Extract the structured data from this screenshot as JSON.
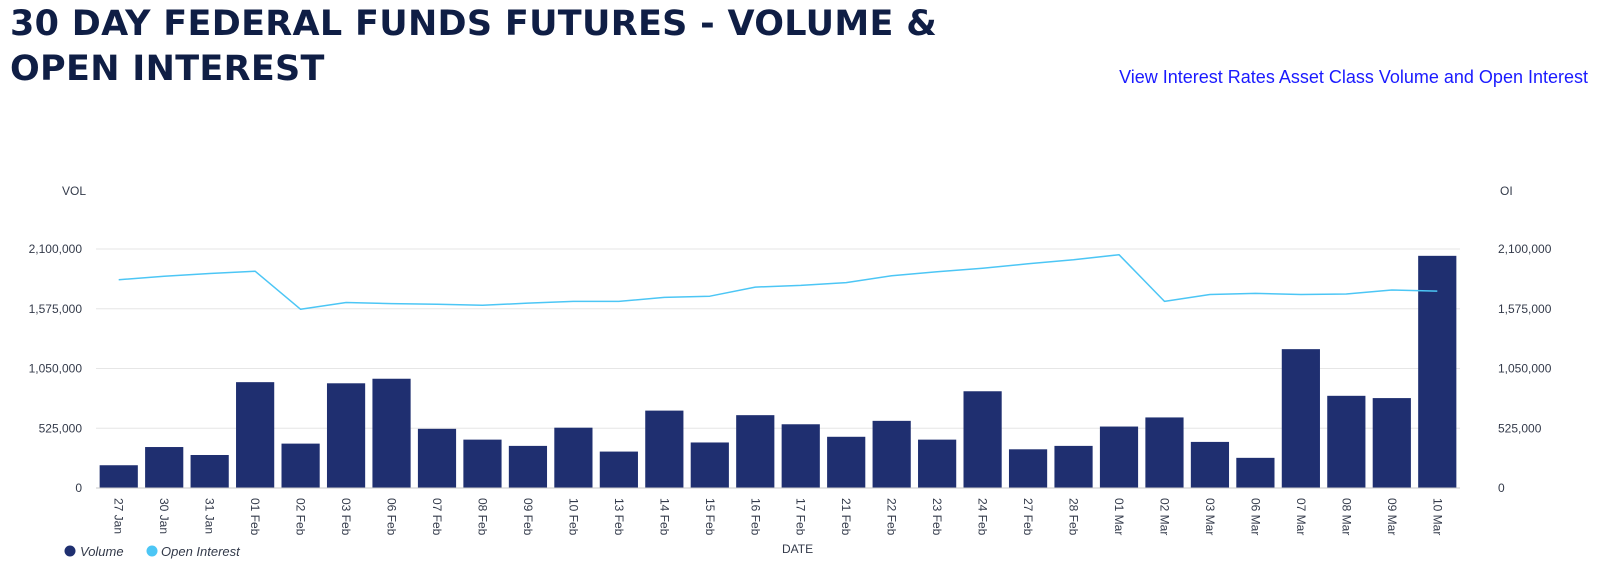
{
  "header": {
    "title": "30 DAY FEDERAL FUNDS FUTURES - VOLUME & OPEN INTEREST",
    "asset_link": "View Interest Rates Asset Class Volume and Open Interest"
  },
  "colors": {
    "volume": "#1f2f70",
    "open_interest": "#4cc6f5",
    "gridline": "#e6e6e6"
  },
  "chart_data": {
    "type": "bar",
    "title": "30 DAY FEDERAL FUNDS FUTURES - VOLUME & OPEN INTEREST",
    "xlabel": "DATE",
    "ylabel": "VOL",
    "y2label": "OI",
    "ylim": [
      0,
      2100000
    ],
    "y2lim": [
      0,
      2100000
    ],
    "yticks": [
      "0",
      "525,000",
      "1,050,000",
      "1,575,000",
      "2,100,000"
    ],
    "y2ticks": [
      "0",
      "525,000",
      "1,050,000",
      "1,575,000",
      "2,100,000"
    ],
    "grid": true,
    "legend": "bottom-left",
    "categories": [
      "27 Jan",
      "30 Jan",
      "31 Jan",
      "01 Feb",
      "02 Feb",
      "03 Feb",
      "06 Feb",
      "07 Feb",
      "08 Feb",
      "09 Feb",
      "10 Feb",
      "13 Feb",
      "14 Feb",
      "15 Feb",
      "16 Feb",
      "17 Feb",
      "21 Feb",
      "22 Feb",
      "23 Feb",
      "24 Feb",
      "27 Feb",
      "28 Feb",
      "01 Mar",
      "02 Mar",
      "03 Mar",
      "06 Mar",
      "07 Mar",
      "08 Mar",
      "09 Mar",
      "10 Mar"
    ],
    "series": [
      {
        "name": "Volume",
        "type": "bar",
        "axis": "left",
        "values": [
          200000,
          360000,
          290000,
          930000,
          390000,
          920000,
          960000,
          520000,
          425000,
          370000,
          530000,
          320000,
          680000,
          400000,
          640000,
          560000,
          450000,
          590000,
          425000,
          850000,
          340000,
          370000,
          540000,
          620000,
          405000,
          265000,
          1220000,
          810000,
          790000,
          2040000
        ]
      },
      {
        "name": "Open Interest",
        "type": "line",
        "axis": "right",
        "values": [
          1830000,
          1860000,
          1885000,
          1905000,
          1570000,
          1630000,
          1620000,
          1615000,
          1605000,
          1625000,
          1640000,
          1640000,
          1675000,
          1685000,
          1765000,
          1780000,
          1805000,
          1865000,
          1900000,
          1930000,
          1970000,
          2005000,
          2050000,
          1640000,
          1700000,
          1710000,
          1700000,
          1705000,
          1740000,
          1730000
        ]
      }
    ]
  }
}
